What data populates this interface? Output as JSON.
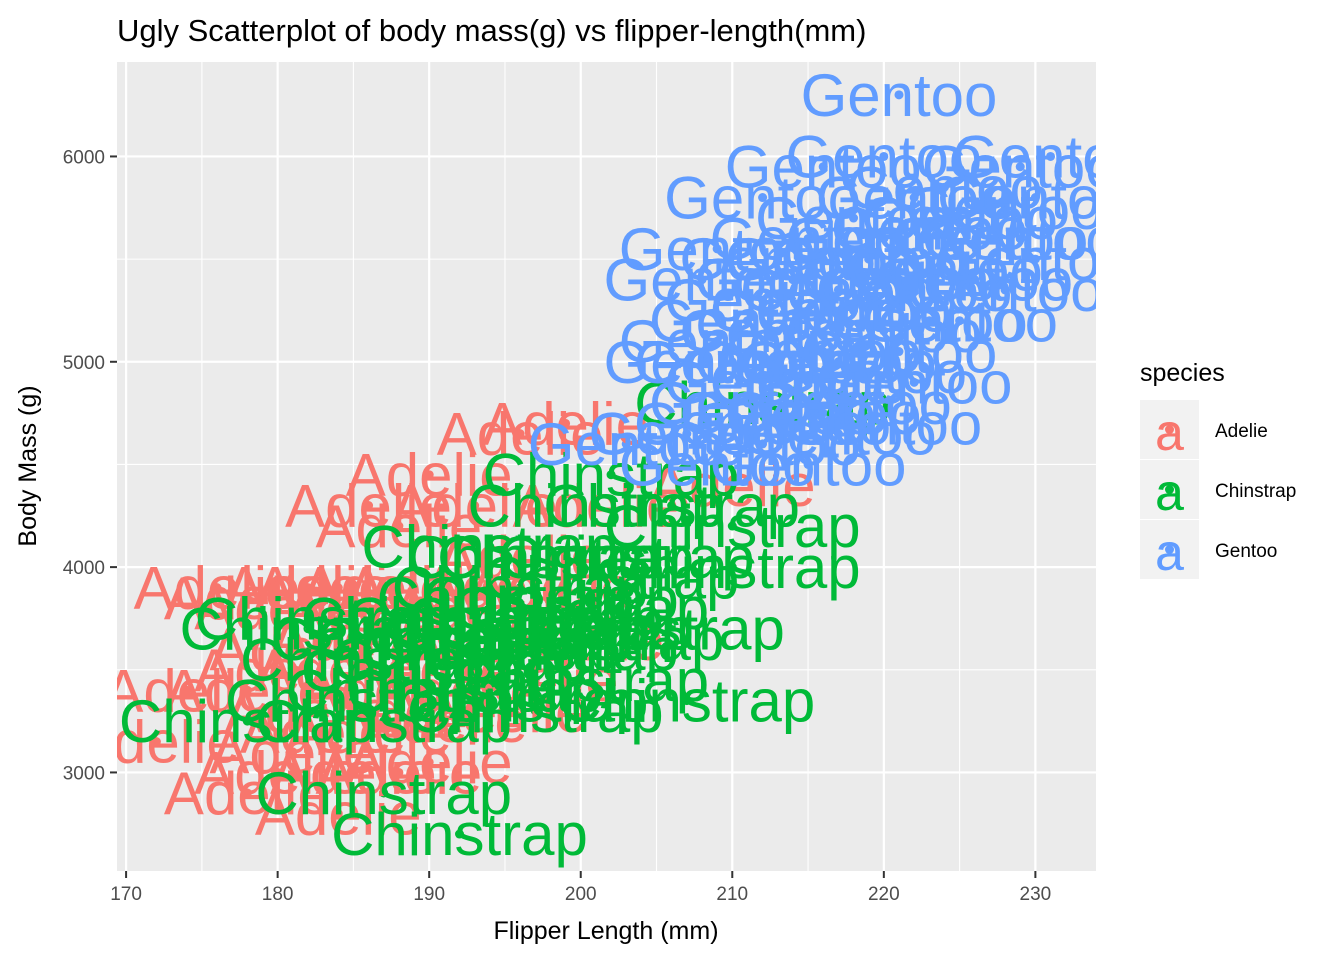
{
  "title": "Ugly Scatterplot of body mass(g) vs flipper-length(mm)",
  "chart_data": {
    "type": "scatter",
    "title": "Ugly Scatterplot of body mass(g) vs flipper-length(mm)",
    "xlabel": "Flipper Length (mm)",
    "ylabel": "Body Mass (g)",
    "xlim": [
      169.4,
      234
    ],
    "ylim": [
      2520,
      6460
    ],
    "x_ticks": [
      170,
      180,
      190,
      200,
      210,
      220,
      230
    ],
    "y_ticks": [
      3000,
      4000,
      5000,
      6000
    ],
    "grid": true,
    "legend": {
      "title": "species",
      "position": "right",
      "key_glyph": "a",
      "entries": [
        "Adelie",
        "Chinstrap",
        "Gentoo"
      ]
    },
    "series": [
      {
        "name": "Adelie",
        "color": "#F8766D",
        "points": [
          [
            172,
            3150
          ],
          [
            174,
            3400
          ],
          [
            176,
            3900
          ],
          [
            178,
            2900
          ],
          [
            178,
            3400
          ],
          [
            178,
            3850
          ],
          [
            180,
            3000
          ],
          [
            180,
            3500
          ],
          [
            180,
            3800
          ],
          [
            181,
            3100
          ],
          [
            181,
            3600
          ],
          [
            182,
            3300
          ],
          [
            182,
            3900
          ],
          [
            183,
            3200
          ],
          [
            184,
            2800
          ],
          [
            184,
            3500
          ],
          [
            184,
            3900
          ],
          [
            185,
            3000
          ],
          [
            185,
            3650
          ],
          [
            186,
            3200
          ],
          [
            186,
            3800
          ],
          [
            186,
            4300
          ],
          [
            187,
            3400
          ],
          [
            187,
            3900
          ],
          [
            188,
            3000
          ],
          [
            188,
            3600
          ],
          [
            188,
            4200
          ],
          [
            189,
            3300
          ],
          [
            189,
            3800
          ],
          [
            190,
            3050
          ],
          [
            190,
            3500
          ],
          [
            190,
            3900
          ],
          [
            190,
            4450
          ],
          [
            191,
            3250
          ],
          [
            191,
            3700
          ],
          [
            192,
            3400
          ],
          [
            193,
            3800
          ],
          [
            193,
            4300
          ],
          [
            194,
            3600
          ],
          [
            195,
            3300
          ],
          [
            195,
            3900
          ],
          [
            196,
            4050
          ],
          [
            196,
            4650
          ],
          [
            197,
            3450
          ],
          [
            198,
            3900
          ],
          [
            199,
            4700
          ],
          [
            200,
            3650
          ],
          [
            201,
            4300
          ],
          [
            210,
            4400
          ]
        ]
      },
      {
        "name": "Chinstrap",
        "color": "#00BA38",
        "points": [
          [
            178,
            3250
          ],
          [
            182,
            3700
          ],
          [
            183,
            3750
          ],
          [
            185,
            3350
          ],
          [
            186,
            3550
          ],
          [
            187,
            2900
          ],
          [
            187,
            3250
          ],
          [
            188,
            3650
          ],
          [
            189,
            3400
          ],
          [
            190,
            3500
          ],
          [
            190,
            3750
          ],
          [
            191,
            3650
          ],
          [
            192,
            2700
          ],
          [
            192,
            3550
          ],
          [
            193,
            3400
          ],
          [
            193,
            3750
          ],
          [
            194,
            3600
          ],
          [
            194,
            4100
          ],
          [
            195,
            3650
          ],
          [
            195,
            3850
          ],
          [
            196,
            3350
          ],
          [
            196,
            3700
          ],
          [
            196,
            3900
          ],
          [
            197,
            3300
          ],
          [
            197,
            3750
          ],
          [
            197,
            4050
          ],
          [
            198,
            3600
          ],
          [
            198,
            3850
          ],
          [
            199,
            3700
          ],
          [
            199,
            4050
          ],
          [
            200,
            3450
          ],
          [
            200,
            3800
          ],
          [
            201,
            3650
          ],
          [
            201,
            4300
          ],
          [
            202,
            3950
          ],
          [
            202,
            4450
          ],
          [
            203,
            4050
          ],
          [
            205,
            3700
          ],
          [
            206,
            4300
          ],
          [
            207,
            3350
          ],
          [
            210,
            4000
          ],
          [
            210,
            4200
          ],
          [
            212,
            4800
          ]
        ]
      },
      {
        "name": "Gentoo",
        "color": "#619CFF",
        "points": [
          [
            203,
            4600
          ],
          [
            207,
            4650
          ],
          [
            208,
            5000
          ],
          [
            208,
            5400
          ],
          [
            209,
            4500
          ],
          [
            209,
            5100
          ],
          [
            209,
            5550
          ],
          [
            210,
            4700
          ],
          [
            210,
            5000
          ],
          [
            211,
            4800
          ],
          [
            211,
            5200
          ],
          [
            212,
            4600
          ],
          [
            212,
            4900
          ],
          [
            212,
            5300
          ],
          [
            212,
            5800
          ],
          [
            213,
            4750
          ],
          [
            213,
            5150
          ],
          [
            213,
            5500
          ],
          [
            214,
            4700
          ],
          [
            214,
            5000
          ],
          [
            214,
            5400
          ],
          [
            215,
            4500
          ],
          [
            215,
            4900
          ],
          [
            215,
            5250
          ],
          [
            215,
            5600
          ],
          [
            216,
            4750
          ],
          [
            216,
            5050
          ],
          [
            216,
            5500
          ],
          [
            216,
            5950
          ],
          [
            217,
            4650
          ],
          [
            217,
            5000
          ],
          [
            217,
            5350
          ],
          [
            218,
            4800
          ],
          [
            218,
            5250
          ],
          [
            218,
            5700
          ],
          [
            219,
            4950
          ],
          [
            219,
            5500
          ],
          [
            220,
            4700
          ],
          [
            220,
            5150
          ],
          [
            220,
            5600
          ],
          [
            220,
            6000
          ],
          [
            221,
            5050
          ],
          [
            221,
            5400
          ],
          [
            221,
            6300
          ],
          [
            222,
            4900
          ],
          [
            222,
            5350
          ],
          [
            222,
            5800
          ],
          [
            223,
            5200
          ],
          [
            223,
            5650
          ],
          [
            224,
            5450
          ],
          [
            224,
            5850
          ],
          [
            225,
            5200
          ],
          [
            225,
            5700
          ],
          [
            226,
            5400
          ],
          [
            227,
            5600
          ],
          [
            228,
            5350
          ],
          [
            228,
            5750
          ],
          [
            229,
            5600
          ],
          [
            229,
            5950
          ],
          [
            230,
            5500
          ],
          [
            230,
            5800
          ],
          [
            231,
            6000
          ]
        ]
      }
    ]
  }
}
